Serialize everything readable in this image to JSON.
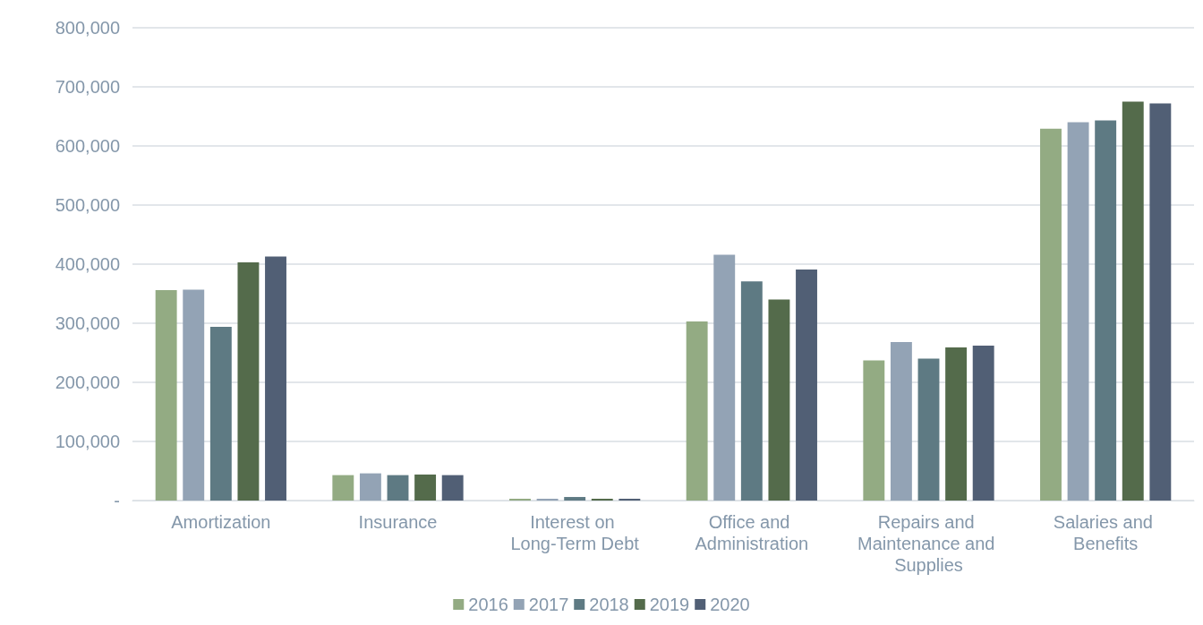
{
  "chart_data": {
    "type": "bar",
    "categories": [
      "Amortization",
      "Insurance",
      "Interest on Long-Term Debt",
      "Office and Administration",
      "Repairs and Maintenance and Supplies",
      "Salaries and Benefits"
    ],
    "series": [
      {
        "name": "2016",
        "color": "#93ab83",
        "values": [
          356000,
          43000,
          3000,
          303000,
          237000,
          629000
        ]
      },
      {
        "name": "2017",
        "color": "#93a3b5",
        "values": [
          357000,
          46000,
          3000,
          416000,
          268000,
          640000
        ]
      },
      {
        "name": "2018",
        "color": "#5e7a83",
        "values": [
          294000,
          43000,
          6000,
          371000,
          240000,
          643000
        ]
      },
      {
        "name": "2019",
        "color": "#546b4b",
        "values": [
          403000,
          44000,
          3000,
          340000,
          259000,
          675000
        ]
      },
      {
        "name": "2020",
        "color": "#515f75",
        "values": [
          413000,
          43000,
          3000,
          391000,
          262000,
          672000
        ]
      }
    ],
    "ylim": [
      0,
      800000
    ],
    "yticks": [
      {
        "value": 0,
        "label": "-"
      },
      {
        "value": 100000,
        "label": "100,000"
      },
      {
        "value": 200000,
        "label": "200,000"
      },
      {
        "value": 300000,
        "label": "300,000"
      },
      {
        "value": 400000,
        "label": "400,000"
      },
      {
        "value": 500000,
        "label": "500,000"
      },
      {
        "value": 600000,
        "label": "600,000"
      },
      {
        "value": 700000,
        "label": "700,000"
      },
      {
        "value": 800000,
        "label": "800,000"
      }
    ],
    "grid": "y",
    "legend": "bottom"
  }
}
